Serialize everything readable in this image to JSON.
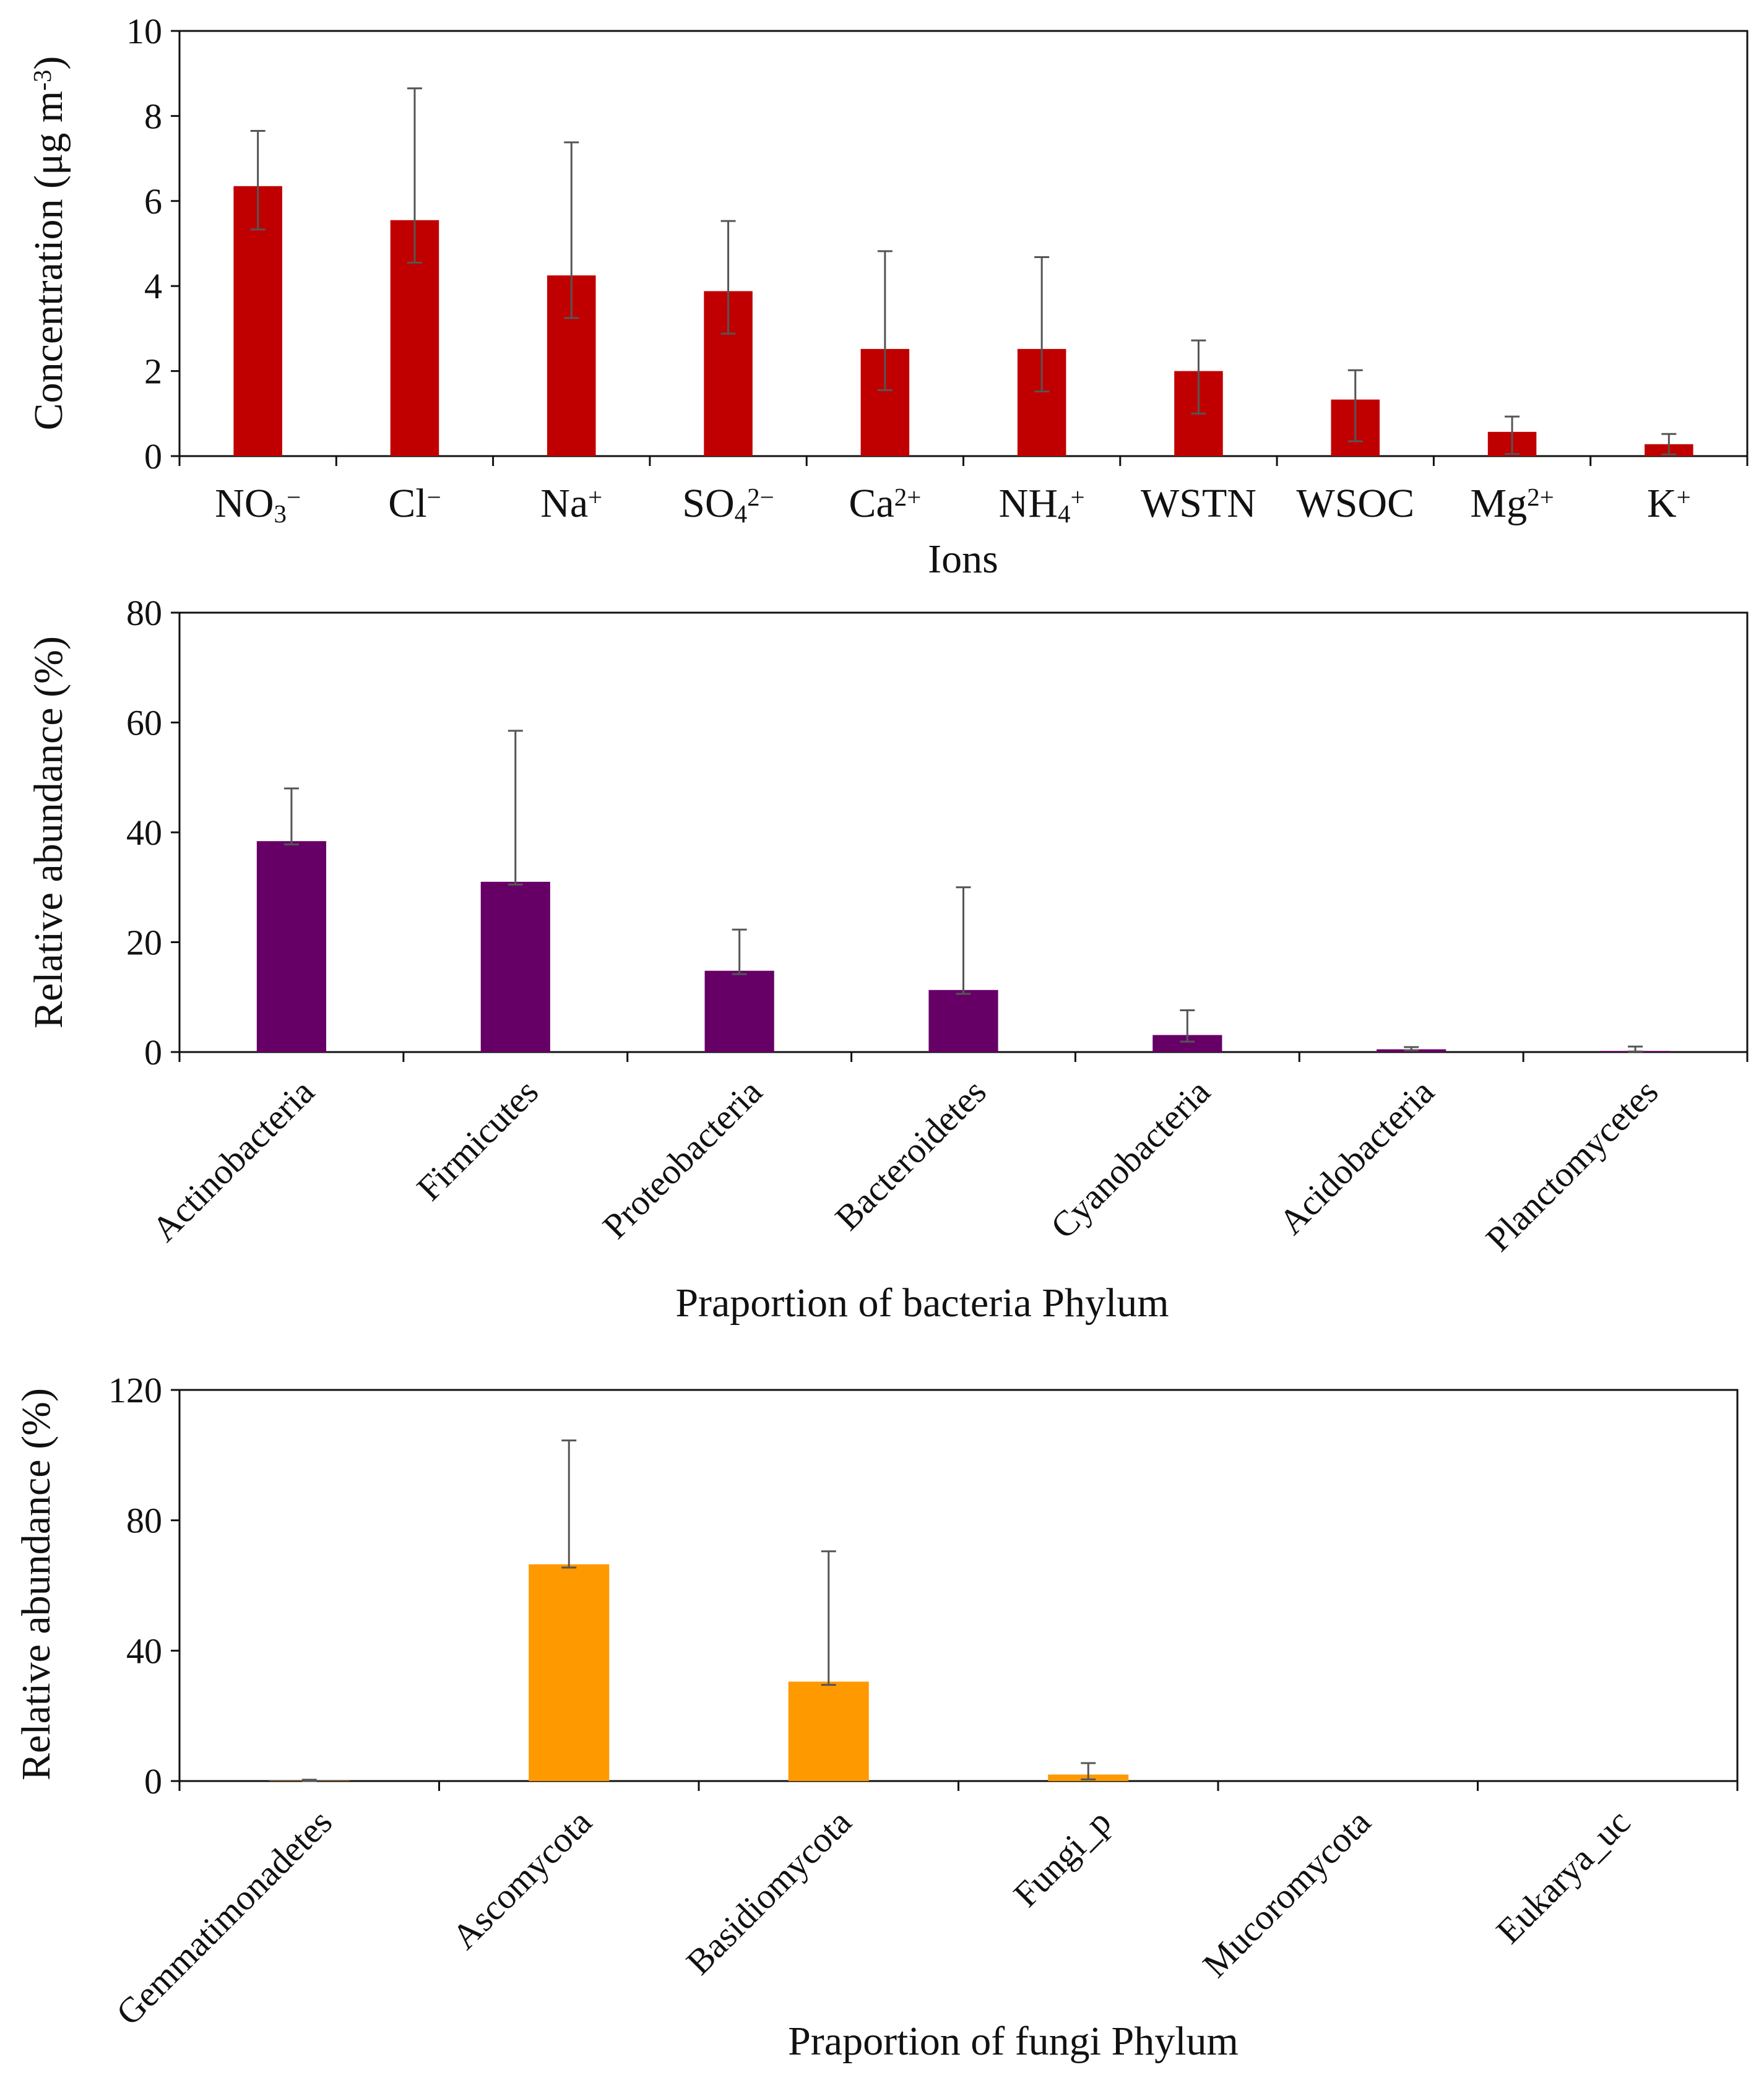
{
  "chart_data": [
    {
      "type": "bar",
      "title": "",
      "xlabel": "Ions",
      "ylabel": "Concentration (μg m⁻³)",
      "ylabel_parts": [
        "Concentration (μg m",
        "-3",
        ")"
      ],
      "ylim": [
        0,
        10
      ],
      "yticks": [
        0,
        2,
        4,
        6,
        8,
        10
      ],
      "color": "#c00000",
      "categories": [
        "NO3−",
        "Cl−",
        "Na+",
        "SO42−",
        "Ca2+",
        "NH4+",
        "WSTN",
        "WSOC",
        "Mg2+",
        "K+"
      ],
      "category_labels": [
        [
          [
            "NO",
            "n"
          ],
          [
            "3",
            "sub"
          ],
          [
            "−",
            "sup"
          ]
        ],
        [
          [
            "Cl",
            "n"
          ],
          [
            "−",
            "sup"
          ]
        ],
        [
          [
            "Na",
            "n"
          ],
          [
            "+",
            "sup"
          ]
        ],
        [
          [
            "SO",
            "n"
          ],
          [
            "4",
            "sub"
          ],
          [
            "2−",
            "sup"
          ]
        ],
        [
          [
            "Ca",
            "n"
          ],
          [
            "2+",
            "sup"
          ]
        ],
        [
          [
            "NH",
            "n"
          ],
          [
            "4",
            "sub"
          ],
          [
            "+",
            "sup"
          ]
        ],
        [
          [
            "WSTN",
            "n"
          ]
        ],
        [
          [
            "WSOC",
            "n"
          ]
        ],
        [
          [
            "Mg",
            "n"
          ],
          [
            "2+",
            "sup"
          ]
        ],
        [
          [
            "K",
            "n"
          ],
          [
            "+",
            "sup"
          ]
        ]
      ],
      "values": [
        6.35,
        5.55,
        4.25,
        3.88,
        2.52,
        2.52,
        2.0,
        1.33,
        0.57,
        0.28
      ],
      "error_upper": [
        7.65,
        8.65,
        7.38,
        5.53,
        4.82,
        4.68,
        2.72,
        2.02,
        0.93,
        0.52
      ],
      "error_lower": [
        5.33,
        4.55,
        3.25,
        2.88,
        1.55,
        1.52,
        1.0,
        0.35,
        0.05,
        0.04
      ],
      "grid": false,
      "legend": "none"
    },
    {
      "type": "bar",
      "title": "",
      "xlabel": "Praportion of bacteria Phylum",
      "ylabel": "Relative abundance (%)",
      "ylim": [
        0,
        80
      ],
      "yticks": [
        0,
        20,
        40,
        60,
        80
      ],
      "color": "#660066",
      "categories": [
        "Actinobacteria",
        "Firmicutes",
        "Proteobacteria",
        "Bacteroidetes",
        "Cyanobacteria",
        "Acidobacteria",
        "Planctomycetes"
      ],
      "values": [
        38.4,
        31.0,
        14.8,
        11.3,
        3.1,
        0.5,
        0.2
      ],
      "error_upper": [
        48.0,
        58.5,
        22.3,
        30.0,
        7.6,
        0.9,
        1.0
      ],
      "error_lower": [
        37.8,
        30.5,
        14.2,
        10.6,
        1.9,
        0.3,
        0.1
      ],
      "grid": false,
      "legend": "none"
    },
    {
      "type": "bar",
      "title": "",
      "xlabel": "Praportion of fungi Phylum",
      "ylabel": "Relative abundance (%)",
      "ylim": [
        0,
        120
      ],
      "yticks": [
        0,
        40,
        80,
        120
      ],
      "color": "#ff9900",
      "categories": [
        "Gemmatimonadetes",
        "Ascomycota",
        "Basidiomycota",
        "Fungi_p",
        "Mucoromycota",
        "Eukarya_uc"
      ],
      "values": [
        0.1,
        66.5,
        30.5,
        2.0,
        0.0,
        0.0
      ],
      "error_upper": [
        0.4,
        104.5,
        70.5,
        5.5,
        0.0,
        0.0
      ],
      "error_lower": [
        0.0,
        65.5,
        29.5,
        0.5,
        0.0,
        0.0
      ],
      "grid": false,
      "legend": "none"
    }
  ]
}
